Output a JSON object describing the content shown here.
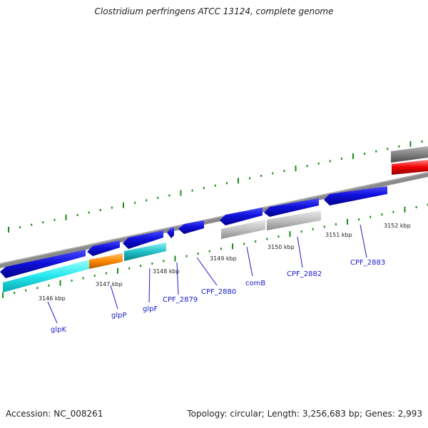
{
  "title": "Clostridium perfringens ATCC 13124, complete genome",
  "accession_text": "Accession: NC_008261",
  "topology_text": "Topology: circular; Length: 3,256,683 bp; Genes: 2,993",
  "ticks": [
    "3146 kbp",
    "3147 kbp",
    "3148 kbp",
    "3149 kbp",
    "3150 kbp",
    "3151 kbp",
    "3152 kbp"
  ],
  "gene_labels": [
    "glpK",
    "glpP",
    "glpF",
    "CPF_2879",
    "CPF_2880",
    "comB",
    "CPF_2882",
    "CPF_2883"
  ],
  "colors": {
    "gene_blue": "#1111dd",
    "cyan": "#22e8ee",
    "orange": "#ff8800",
    "teal": "#20c0c8",
    "gray_light": "#c0c0c0",
    "gray_dark": "#808080",
    "red": "#ee0000",
    "tick_green": "#1a8a1a",
    "label_blue": "#1a1acc"
  }
}
